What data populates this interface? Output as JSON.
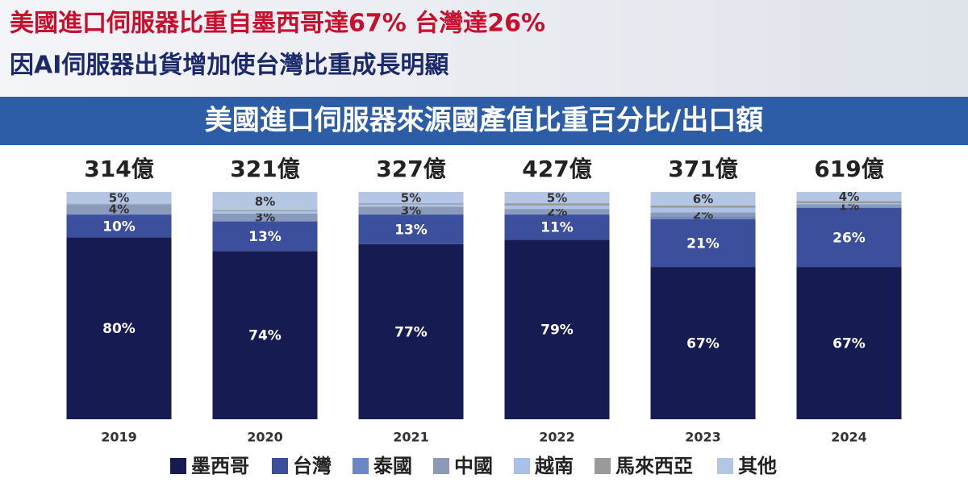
{
  "header": {
    "title": "美國進口伺服器比重自墨西哥達67% 台灣達26%",
    "subtitle": "因AI伺服器出貨增加使台灣比重成長明顯"
  },
  "chart_data": {
    "type": "stacked_bar",
    "title": "美國進口伺服器來源國產值比重百分比/出口額",
    "categories": [
      "2019",
      "2020",
      "2021",
      "2022",
      "2023",
      "2024"
    ],
    "annotations": [
      "314億",
      "321億",
      "327億",
      "427億",
      "371億",
      "619億"
    ],
    "ylim": [
      0,
      100
    ],
    "series": [
      {
        "name": "墨西哥",
        "color": "#161c52",
        "values": [
          80,
          74,
          77,
          79,
          67,
          67
        ],
        "value_labels": [
          "80%",
          "74%",
          "77%",
          "79%",
          "67%",
          "67%"
        ]
      },
      {
        "name": "台灣",
        "color": "#3b4f9c",
        "values": [
          10,
          13,
          13,
          11,
          21,
          26
        ],
        "value_labels": [
          "10%",
          "13%",
          "13%",
          "11%",
          "21%",
          "26%"
        ]
      },
      {
        "name": "泰國",
        "color": "#6a86c4",
        "values": [
          0.5,
          0.5,
          0.5,
          0.5,
          1,
          0.5
        ],
        "value_labels": [
          null,
          null,
          null,
          null,
          null,
          null
        ]
      },
      {
        "name": "中國",
        "color": "#8a9ab8",
        "values": [
          4,
          3,
          3,
          2,
          2,
          1
        ],
        "value_labels": [
          "4%",
          "3%",
          "3%",
          "2%",
          "2%",
          "1%"
        ]
      },
      {
        "name": "越南",
        "color": "#a9c0e8",
        "values": [
          0.3,
          1,
          1,
          1.5,
          2,
          0.5
        ],
        "value_labels": [
          null,
          null,
          null,
          null,
          null,
          null
        ]
      },
      {
        "name": "馬來西亞",
        "color": "#9a9a9a",
        "values": [
          0.2,
          0.5,
          0.5,
          1,
          1,
          1
        ],
        "value_labels": [
          null,
          null,
          null,
          null,
          null,
          null
        ]
      },
      {
        "name": "其他",
        "color": "#b3c6e4",
        "values": [
          5,
          8,
          5,
          5,
          6,
          4
        ],
        "value_labels": [
          "5%",
          "8%",
          "5%",
          "5%",
          "6%",
          "4%"
        ]
      }
    ]
  }
}
